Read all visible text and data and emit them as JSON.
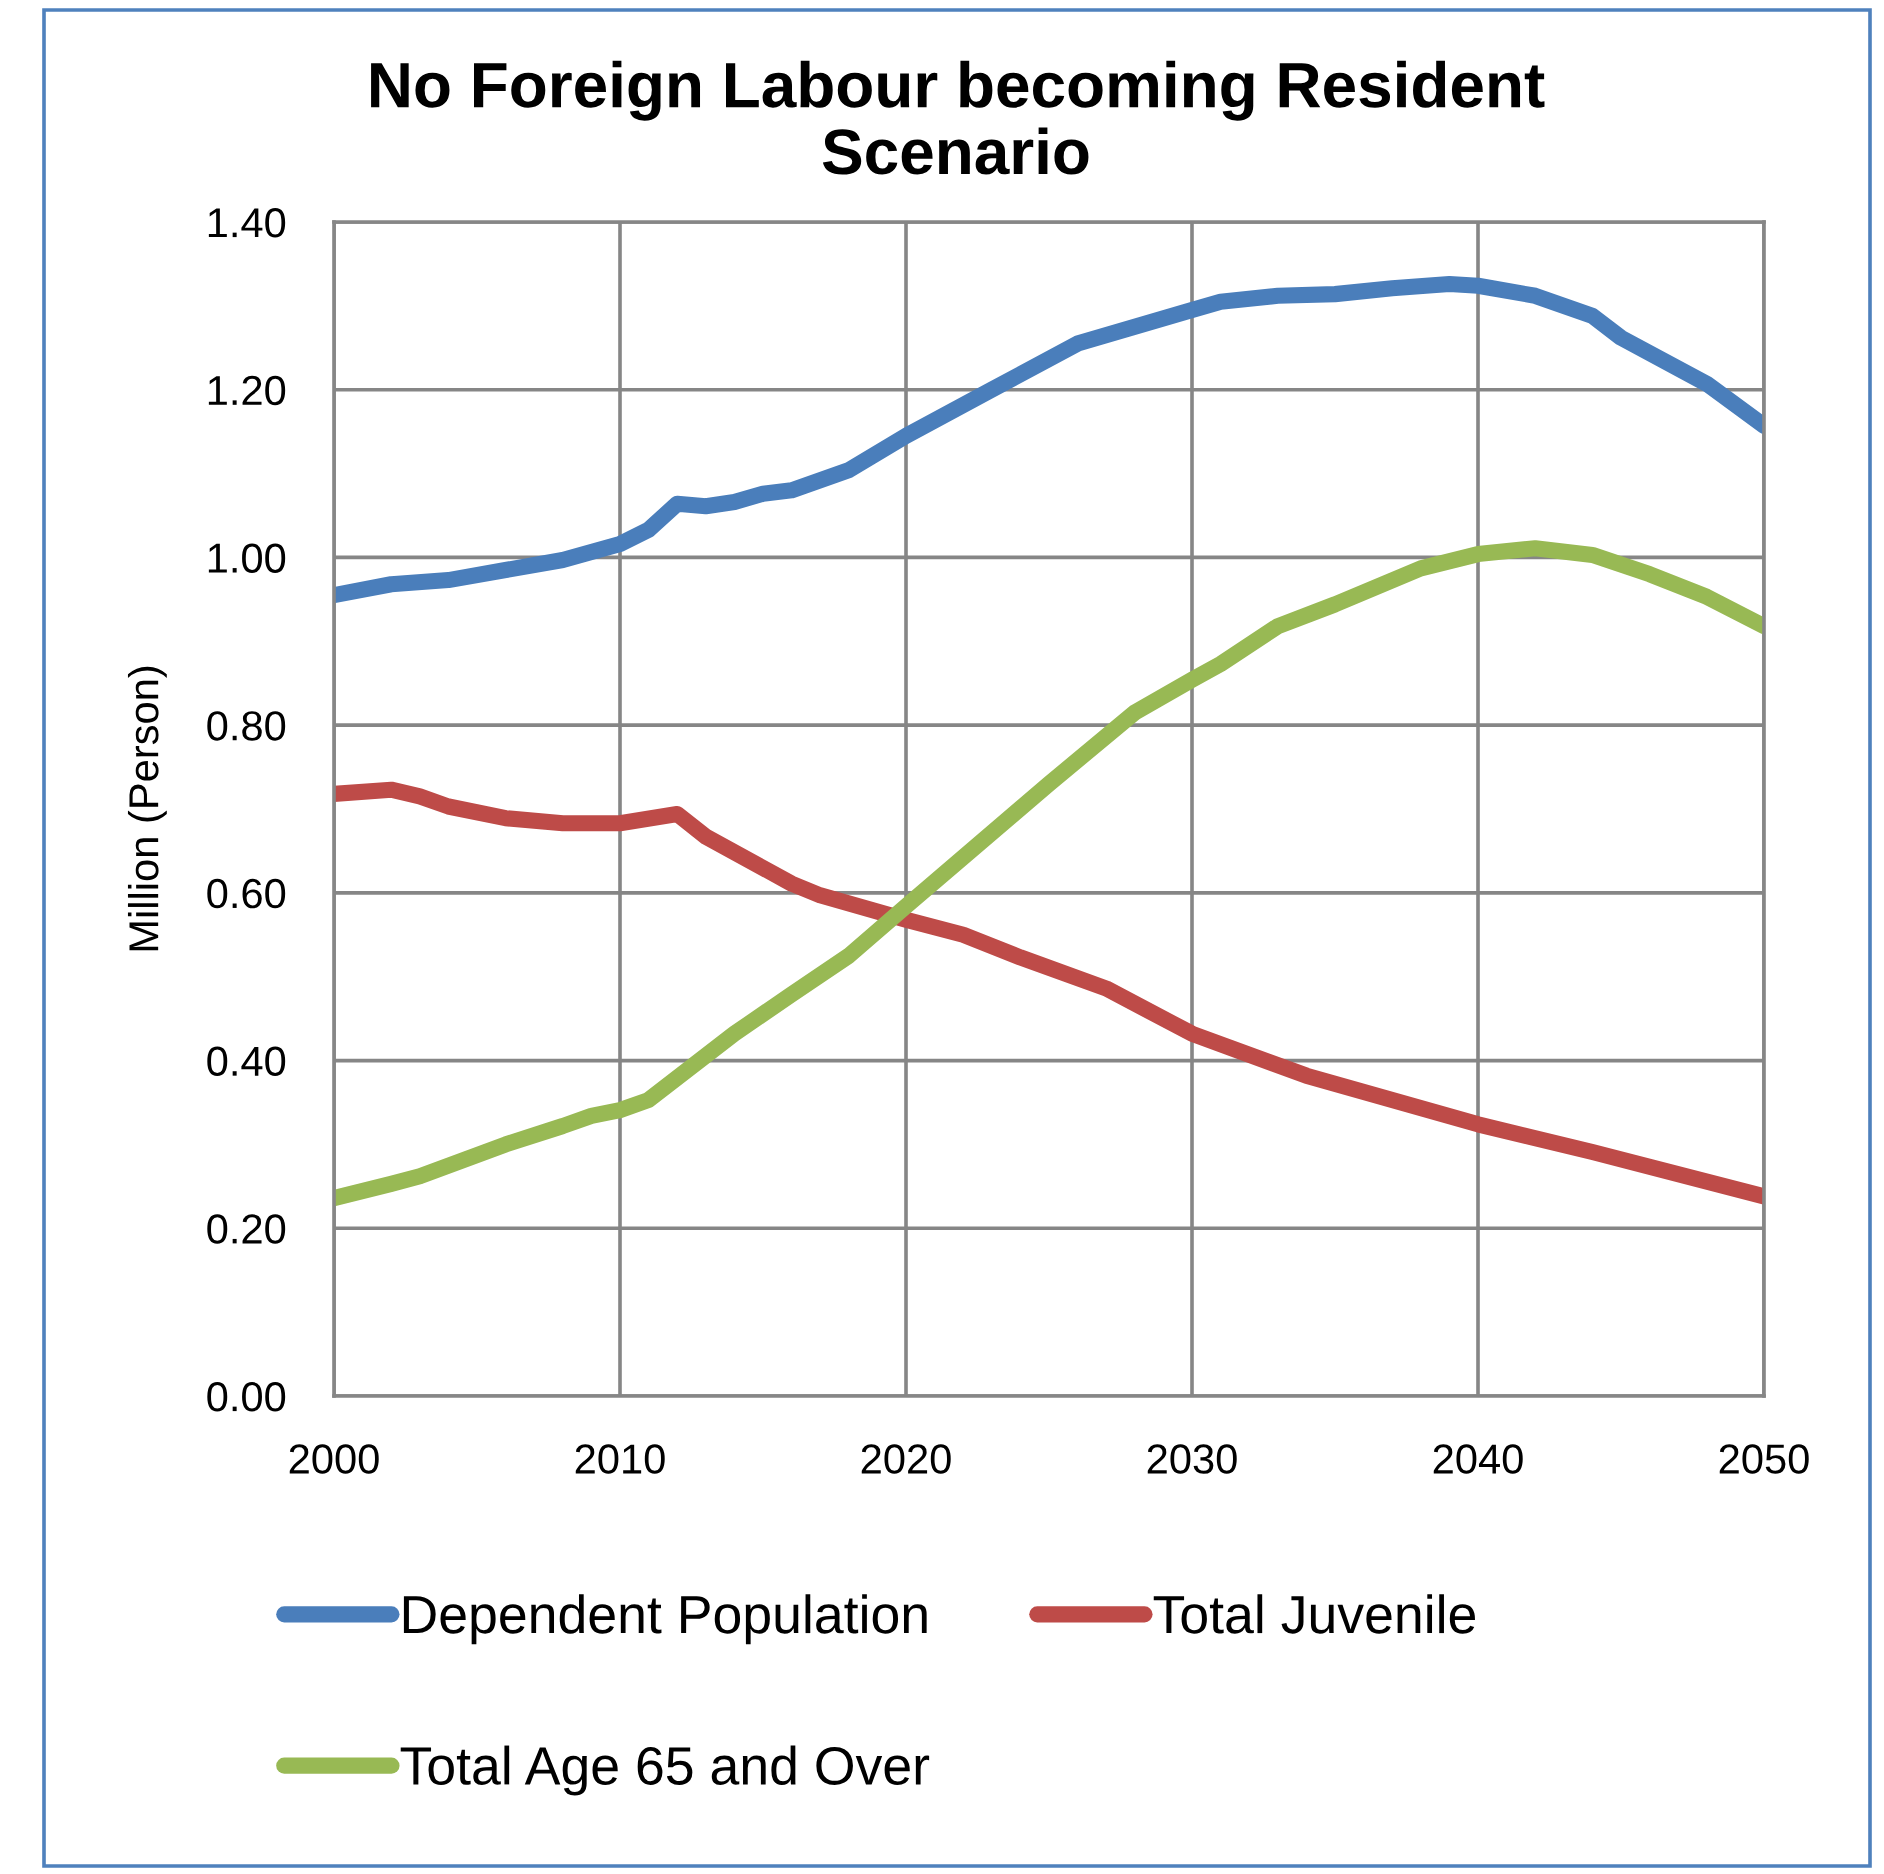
{
  "chart_data": {
    "type": "line",
    "title": "No Foreign Labour becoming Resident\nScenario",
    "ylabel": "Million (Person)",
    "series": [
      {
        "name": "Dependent Population",
        "color": "#4a7ebb",
        "x": [
          2000,
          2002,
          2004,
          2006,
          2008,
          2010,
          2011,
          2012,
          2013,
          2014,
          2015,
          2016,
          2018,
          2020,
          2023,
          2026,
          2030,
          2031,
          2033,
          2035,
          2037,
          2039,
          2040,
          2042,
          2044,
          2045,
          2048,
          2050
        ],
        "values": [
          0.955,
          0.968,
          0.973,
          0.985,
          0.997,
          1.016,
          1.033,
          1.064,
          1.061,
          1.066,
          1.076,
          1.08,
          1.104,
          1.145,
          1.2,
          1.255,
          1.295,
          1.305,
          1.312,
          1.314,
          1.321,
          1.326,
          1.324,
          1.312,
          1.288,
          1.262,
          1.207,
          1.157
        ]
      },
      {
        "name": "Total Juvenile",
        "color": "#be4b48",
        "x": [
          2000,
          2002,
          2003,
          2004,
          2006,
          2008,
          2010,
          2012,
          2013,
          2016,
          2017,
          2020,
          2022,
          2024,
          2027,
          2030,
          2034,
          2040,
          2044,
          2050
        ],
        "values": [
          0.718,
          0.723,
          0.715,
          0.703,
          0.689,
          0.683,
          0.683,
          0.694,
          0.667,
          0.611,
          0.597,
          0.568,
          0.55,
          0.523,
          0.486,
          0.432,
          0.382,
          0.324,
          0.291,
          0.238
        ]
      },
      {
        "name": "Total Age 65 and Over",
        "color": "#98b954",
        "x": [
          2000,
          2002,
          2003,
          2006,
          2008,
          2009,
          2010,
          2011,
          2014,
          2016,
          2018,
          2020,
          2025,
          2028,
          2030,
          2031,
          2033,
          2035,
          2038,
          2040,
          2042,
          2044,
          2046,
          2048,
          2050
        ],
        "values": [
          0.236,
          0.253,
          0.262,
          0.3,
          0.322,
          0.334,
          0.341,
          0.353,
          0.432,
          0.479,
          0.525,
          0.584,
          0.73,
          0.815,
          0.854,
          0.873,
          0.918,
          0.944,
          0.987,
          1.004,
          1.011,
          1.003,
          0.98,
          0.953,
          0.918
        ]
      }
    ],
    "xlim": [
      2000,
      2050
    ],
    "xticks": [
      2000,
      2010,
      2020,
      2030,
      2040,
      2050
    ],
    "ylim": [
      0,
      1.4
    ],
    "yticks": [
      {
        "value": 0,
        "label": "0.00"
      },
      {
        "value": 0.2,
        "label": "0.20"
      },
      {
        "value": 0.4,
        "label": "0.40"
      },
      {
        "value": 0.6,
        "label": "0.60"
      },
      {
        "value": 0.8,
        "label": "0.80"
      },
      {
        "value": 1.0,
        "label": "1.00"
      },
      {
        "value": 1.2,
        "label": "1.20"
      },
      {
        "value": 1.4,
        "label": "1.40"
      }
    ],
    "grid": true,
    "legend": "bottom",
    "line_style": "solid"
  }
}
